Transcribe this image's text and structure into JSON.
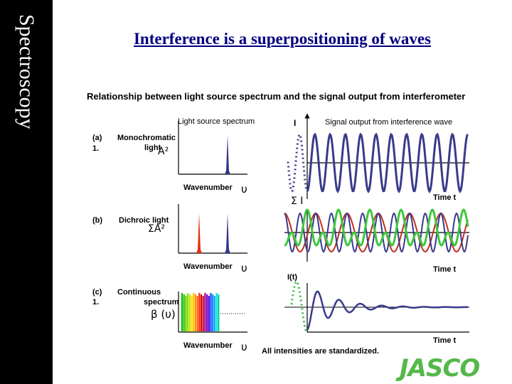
{
  "sidebar": {
    "text": "Spectroscopy"
  },
  "title": "Interference is a superpositioning of waves",
  "subtitle": "Relationship between light source spectrum and the signal output from interferometer",
  "headers": {
    "light_source": "Light source spectrum",
    "signal_output": "Signal output from interference wave",
    "intensity": "I"
  },
  "rows": {
    "a": {
      "tag": "(a)",
      "num": "1.",
      "label_line1": "Monochromatic",
      "label_line2": "light",
      "symbol": "A²"
    },
    "b": {
      "tag": "(b)",
      "label": "Dichroic light",
      "symbol": "ΣA²",
      "sum_intensity": "Σ I"
    },
    "c": {
      "tag": "(c)",
      "num": "1.",
      "label_line1": "Continuous",
      "label_line2": "spectrum",
      "symbol": "β (υ)",
      "intensity_t": "I(t)"
    }
  },
  "axes": {
    "wavenumber": "Wavenumber",
    "wavenumber_symbol": "υ",
    "time": "Time t"
  },
  "note": "All intensities are standardized.",
  "logo": {
    "text": "JASCO",
    "color": "#55b84a"
  },
  "colors": {
    "sidebar": "#000000",
    "title": "#000080",
    "wave_blue": "#3a3a8c",
    "wave_green": "#3cc83c",
    "wave_red": "#c03020",
    "line_red": "#e03010",
    "dots": "#3cb83c"
  }
}
